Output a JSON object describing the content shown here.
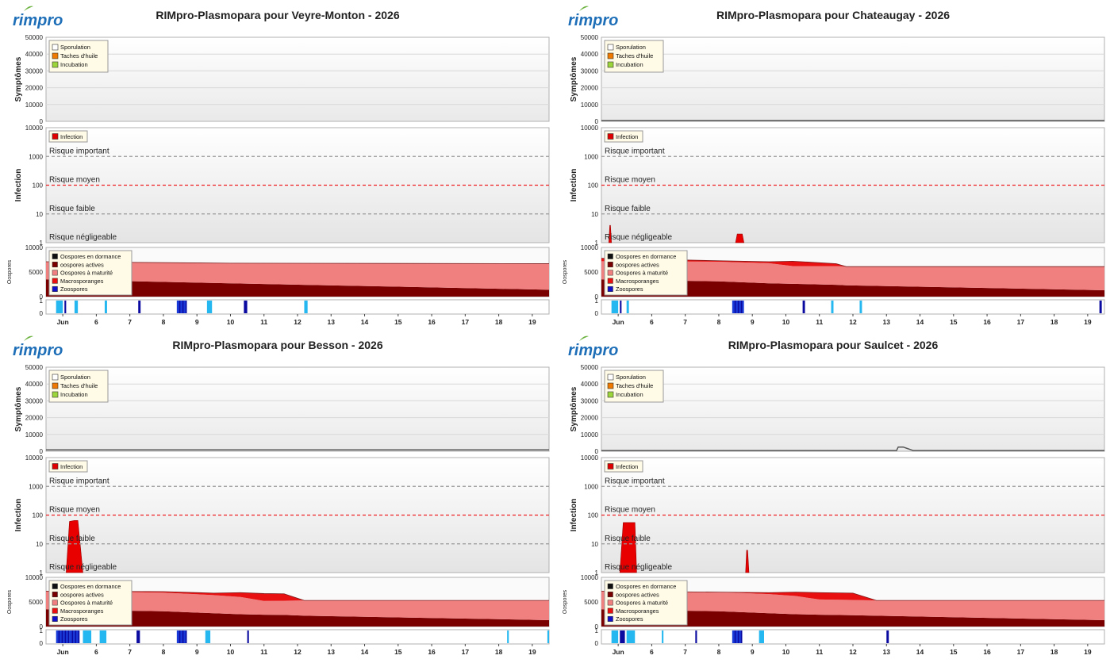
{
  "logo_text": "rimpro",
  "legend_labels": {
    "symptoms": [
      "Sporulation",
      "Taches d'huile",
      "Incubation"
    ],
    "infection": [
      "Infection"
    ],
    "oospores": [
      "Oospores en dormance",
      "oospores actives",
      "Oospores à maturité",
      "Macrosporanges",
      "Zoospores"
    ]
  },
  "legend_colors": {
    "symptoms": [
      "#ffffff",
      "#f07a00",
      "#9bd53a"
    ],
    "infection": [
      "#e00000"
    ],
    "oospores": [
      "#101010",
      "#7a0000",
      "#f08080",
      "#e81010",
      "#1010c8"
    ]
  },
  "axis_labels": {
    "symptoms": "Symptômes",
    "infection": "Infection",
    "oospores": "Oospores"
  },
  "risk_labels": [
    "Risque important",
    "Risque moyen",
    "Risque faible",
    "Risque négligeable"
  ],
  "x_tick_labels": [
    "Jun",
    "6",
    "7",
    "8",
    "9",
    "10",
    "11",
    "12",
    "13",
    "14",
    "15",
    "16",
    "17",
    "18",
    "19"
  ],
  "chart_data": [
    {
      "type": "area",
      "title": "RIMpro-Plasmopara pour  Veyre-Monton - 2026",
      "x_domain": [
        4.5,
        19.5
      ],
      "panels": {
        "symptoms": {
          "ylabel": "Symptômes",
          "ylim": [
            0,
            50000
          ],
          "yticks": [
            0,
            10000,
            20000,
            30000,
            40000,
            50000
          ],
          "x": [
            4.5,
            19.5
          ],
          "series": []
        },
        "infection": {
          "ylabel": "Infection",
          "scale": "log",
          "ylim": [
            1,
            10000
          ],
          "yticks": [
            1,
            10,
            100,
            1000,
            10000
          ],
          "thresholds": [
            1000,
            100,
            10,
            1
          ],
          "x": [],
          "values": []
        },
        "oospores": {
          "ylabel": "Oospores",
          "ylim": [
            0,
            10000
          ],
          "yticks": [
            0,
            5000,
            10000
          ],
          "x": [
            4.5,
            10.0,
            19.5
          ],
          "stack": [
            {
              "values": [
                3500,
                2700,
                1400
              ]
            },
            {
              "values": [
                3600,
                4100,
                5300
              ]
            },
            {
              "values": [
                0,
                0,
                0
              ]
            }
          ]
        },
        "wetness": {
          "ylim": [
            0,
            1
          ],
          "yticks": [
            0,
            1
          ],
          "periods": [
            [
              4.8,
              5.0
            ],
            [
              5.05,
              5.1
            ],
            [
              5.35,
              5.45
            ],
            [
              6.25,
              6.32
            ],
            [
              7.25,
              7.32
            ],
            [
              8.4,
              8.7
            ],
            [
              9.3,
              9.45
            ],
            [
              10.4,
              10.5
            ],
            [
              12.2,
              12.3
            ]
          ]
        }
      }
    },
    {
      "type": "area",
      "title": "RIMpro-Plasmopara pour  Chateaugay - 2026",
      "x_domain": [
        4.5,
        19.5
      ],
      "panels": {
        "symptoms": {
          "ylabel": "Symptômes",
          "ylim": [
            0,
            50000
          ],
          "yticks": [
            0,
            10000,
            20000,
            30000,
            40000,
            50000
          ],
          "x": [
            4.5,
            19.5
          ],
          "series": [
            {
              "values": [
                500,
                500
              ]
            }
          ]
        },
        "infection": {
          "ylabel": "Infection",
          "scale": "log",
          "ylim": [
            1,
            10000
          ],
          "yticks": [
            1,
            10,
            100,
            1000,
            10000
          ],
          "thresholds": [
            1000,
            100,
            10,
            1
          ],
          "x": [
            4.72,
            4.75,
            4.77,
            4.8,
            8.5,
            8.55,
            8.7,
            8.75
          ],
          "values": [
            1,
            4,
            4,
            1,
            1,
            2,
            2,
            1
          ]
        },
        "oospores": {
          "ylabel": "Oospores",
          "ylim": [
            0,
            10000
          ],
          "yticks": [
            0,
            5000,
            10000
          ],
          "x": [
            4.5,
            8.0,
            9.5,
            10.2,
            11.5,
            11.8,
            19.5
          ],
          "stack": [
            {
              "values": [
                3500,
                3100,
                2700,
                2600,
                2400,
                2300,
                1300
              ]
            },
            {
              "values": [
                3700,
                4000,
                4100,
                3600,
                3800,
                3800,
                4800
              ]
            },
            {
              "values": [
                600,
                200,
                300,
                1000,
                500,
                0,
                0
              ]
            }
          ]
        },
        "wetness": {
          "ylim": [
            0,
            1
          ],
          "yticks": [
            0,
            1
          ],
          "periods": [
            [
              4.8,
              5.0
            ],
            [
              5.05,
              5.1
            ],
            [
              5.25,
              5.32
            ],
            [
              8.4,
              8.75
            ],
            [
              10.5,
              10.57
            ],
            [
              11.35,
              11.42
            ],
            [
              12.2,
              12.27
            ],
            [
              19.35,
              19.42
            ]
          ]
        }
      }
    },
    {
      "type": "area",
      "title": "RIMpro-Plasmopara pour  Besson - 2026",
      "x_domain": [
        4.5,
        19.5
      ],
      "panels": {
        "symptoms": {
          "ylabel": "Symptômes",
          "ylim": [
            0,
            50000
          ],
          "yticks": [
            0,
            10000,
            20000,
            30000,
            40000,
            50000
          ],
          "x": [
            4.5,
            19.5
          ],
          "series": [
            {
              "values": [
                800,
                800
              ]
            }
          ]
        },
        "infection": {
          "ylabel": "Infection",
          "scale": "log",
          "ylim": [
            1,
            10000
          ],
          "yticks": [
            1,
            10,
            100,
            1000,
            10000
          ],
          "thresholds": [
            1000,
            100,
            10,
            1
          ],
          "x": [
            5.1,
            5.2,
            5.35,
            5.45,
            5.6
          ],
          "values": [
            1,
            60,
            65,
            65,
            1
          ]
        },
        "oospores": {
          "ylabel": "Oospores",
          "ylim": [
            0,
            10000
          ],
          "yticks": [
            0,
            5000,
            10000
          ],
          "x": [
            4.5,
            8.0,
            9.5,
            10.3,
            11.0,
            11.6,
            12.2,
            19.5
          ],
          "stack": [
            {
              "values": [
                3500,
                3100,
                2700,
                2500,
                2400,
                2350,
                2200,
                1300
              ]
            },
            {
              "values": [
                3700,
                3800,
                3700,
                3500,
                2800,
                2900,
                3100,
                4000
              ]
            },
            {
              "values": [
                0,
                200,
                400,
                900,
                1500,
                1400,
                0,
                0
              ]
            }
          ]
        },
        "wetness": {
          "ylim": [
            0,
            1
          ],
          "yticks": [
            0,
            1
          ],
          "periods": [
            [
              4.8,
              5.2
            ],
            [
              5.2,
              5.5
            ],
            [
              5.6,
              5.85
            ],
            [
              6.1,
              6.3
            ],
            [
              7.2,
              7.3
            ],
            [
              8.4,
              8.7
            ],
            [
              9.25,
              9.4
            ],
            [
              10.5,
              10.55
            ],
            [
              18.25,
              18.3
            ],
            [
              19.45,
              19.5
            ]
          ]
        }
      }
    },
    {
      "type": "area",
      "title": "RIMpro-Plasmopara pour  Saulcet - 2026",
      "x_domain": [
        4.5,
        19.5
      ],
      "panels": {
        "symptoms": {
          "ylabel": "Symptômes",
          "ylim": [
            0,
            50000
          ],
          "yticks": [
            0,
            10000,
            20000,
            30000,
            40000,
            50000
          ],
          "x": [
            4.5,
            13.3,
            13.35,
            13.5,
            13.8,
            19.5
          ],
          "series": [
            {
              "values": [
                400,
                400,
                2500,
                2500,
                400,
                400
              ]
            }
          ]
        },
        "infection": {
          "ylabel": "Infection",
          "scale": "log",
          "ylim": [
            1,
            10000
          ],
          "yticks": [
            1,
            10,
            100,
            1000,
            10000
          ],
          "thresholds": [
            1000,
            100,
            10,
            1
          ],
          "x": [
            5.05,
            5.15,
            5.3,
            5.5,
            5.55,
            8.8,
            8.83,
            8.86,
            8.9
          ],
          "values": [
            1,
            55,
            55,
            55,
            1,
            1,
            6,
            6,
            1
          ]
        },
        "oospores": {
          "ylabel": "Oospores",
          "ylim": [
            0,
            10000
          ],
          "yticks": [
            0,
            5000,
            10000
          ],
          "x": [
            4.5,
            8.0,
            9.5,
            10.3,
            11.0,
            12.0,
            12.7,
            19.5
          ],
          "stack": [
            {
              "values": [
                3500,
                3100,
                2700,
                2500,
                2400,
                2300,
                2200,
                1300
              ]
            },
            {
              "values": [
                3700,
                3900,
                3900,
                3700,
                3100,
                3100,
                3100,
                4000
              ]
            },
            {
              "values": [
                0,
                0,
                300,
                800,
                1400,
                1400,
                0,
                0
              ]
            }
          ]
        },
        "wetness": {
          "ylim": [
            0,
            1
          ],
          "yticks": [
            0,
            1
          ],
          "periods": [
            [
              4.8,
              5.0
            ],
            [
              5.05,
              5.2
            ],
            [
              5.25,
              5.5
            ],
            [
              6.3,
              6.35
            ],
            [
              7.3,
              7.35
            ],
            [
              8.4,
              8.7
            ],
            [
              9.2,
              9.35
            ],
            [
              13.0,
              13.07
            ]
          ]
        }
      }
    }
  ]
}
